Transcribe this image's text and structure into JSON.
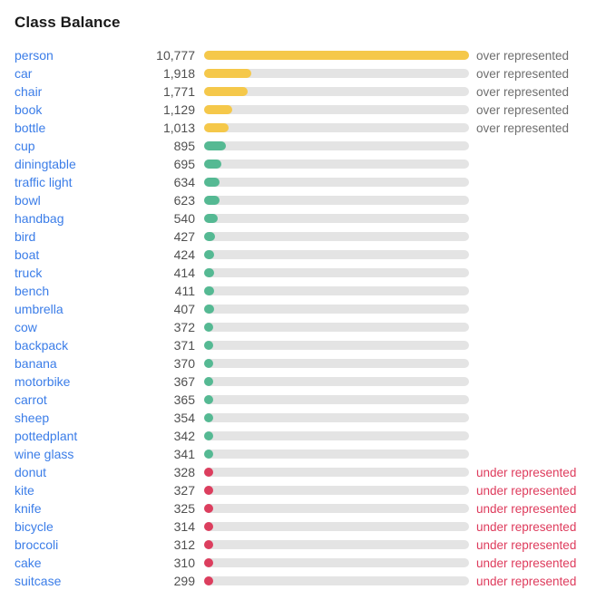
{
  "title": "Class Balance",
  "status_labels": {
    "over": "over represented",
    "under": "under represented",
    "balanced": ""
  },
  "colors": {
    "over_bar": "#f5c84a",
    "balanced_bar": "#55b993",
    "under_bar": "#dc3e5e",
    "track": "#e4e4e4",
    "label_link": "#3b7de8",
    "over_text": "#6e6e6e",
    "under_text": "#de3b5c"
  },
  "chart_data": {
    "type": "bar",
    "title": "Class Balance",
    "orientation": "horizontal",
    "max_value": 10777,
    "xlim": [
      0,
      10777
    ],
    "rows": [
      {
        "label": "person",
        "count": "10,777",
        "value": 10777,
        "status": "over"
      },
      {
        "label": "car",
        "count": "1,918",
        "value": 1918,
        "status": "over"
      },
      {
        "label": "chair",
        "count": "1,771",
        "value": 1771,
        "status": "over"
      },
      {
        "label": "book",
        "count": "1,129",
        "value": 1129,
        "status": "over"
      },
      {
        "label": "bottle",
        "count": "1,013",
        "value": 1013,
        "status": "over"
      },
      {
        "label": "cup",
        "count": "895",
        "value": 895,
        "status": "balanced"
      },
      {
        "label": "diningtable",
        "count": "695",
        "value": 695,
        "status": "balanced"
      },
      {
        "label": "traffic light",
        "count": "634",
        "value": 634,
        "status": "balanced"
      },
      {
        "label": "bowl",
        "count": "623",
        "value": 623,
        "status": "balanced"
      },
      {
        "label": "handbag",
        "count": "540",
        "value": 540,
        "status": "balanced"
      },
      {
        "label": "bird",
        "count": "427",
        "value": 427,
        "status": "balanced"
      },
      {
        "label": "boat",
        "count": "424",
        "value": 424,
        "status": "balanced"
      },
      {
        "label": "truck",
        "count": "414",
        "value": 414,
        "status": "balanced"
      },
      {
        "label": "bench",
        "count": "411",
        "value": 411,
        "status": "balanced"
      },
      {
        "label": "umbrella",
        "count": "407",
        "value": 407,
        "status": "balanced"
      },
      {
        "label": "cow",
        "count": "372",
        "value": 372,
        "status": "balanced"
      },
      {
        "label": "backpack",
        "count": "371",
        "value": 371,
        "status": "balanced"
      },
      {
        "label": "banana",
        "count": "370",
        "value": 370,
        "status": "balanced"
      },
      {
        "label": "motorbike",
        "count": "367",
        "value": 367,
        "status": "balanced"
      },
      {
        "label": "carrot",
        "count": "365",
        "value": 365,
        "status": "balanced"
      },
      {
        "label": "sheep",
        "count": "354",
        "value": 354,
        "status": "balanced"
      },
      {
        "label": "pottedplant",
        "count": "342",
        "value": 342,
        "status": "balanced"
      },
      {
        "label": "wine glass",
        "count": "341",
        "value": 341,
        "status": "balanced"
      },
      {
        "label": "donut",
        "count": "328",
        "value": 328,
        "status": "under"
      },
      {
        "label": "kite",
        "count": "327",
        "value": 327,
        "status": "under"
      },
      {
        "label": "knife",
        "count": "325",
        "value": 325,
        "status": "under"
      },
      {
        "label": "bicycle",
        "count": "314",
        "value": 314,
        "status": "under"
      },
      {
        "label": "broccoli",
        "count": "312",
        "value": 312,
        "status": "under"
      },
      {
        "label": "cake",
        "count": "310",
        "value": 310,
        "status": "under"
      },
      {
        "label": "suitcase",
        "count": "299",
        "value": 299,
        "status": "under"
      }
    ]
  }
}
